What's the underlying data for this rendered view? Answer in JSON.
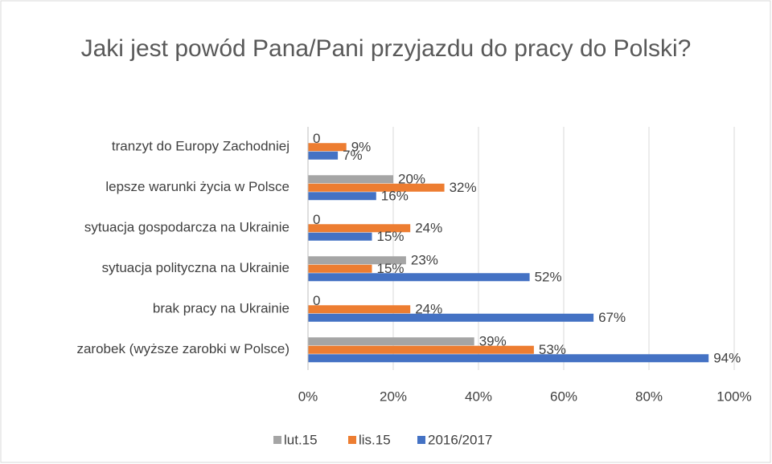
{
  "chart_data": {
    "type": "bar",
    "orientation": "horizontal",
    "title": "Jaki jest powód Pana/Pani przyjazdu do pracy  do Polski?",
    "categories": [
      "tranzyt do Europy Zachodniej",
      "lepsze warunki życia w Polsce",
      "sytuacja gospodarcza na Ukrainie",
      "sytuacja polityczna na Ukrainie",
      "brak pracy na Ukrainie",
      "zarobek (wyższe zarobki w Polsce)"
    ],
    "series": [
      {
        "name": "lut.15",
        "color": "#a5a5a5",
        "values": [
          0,
          20,
          0,
          23,
          0,
          39
        ],
        "value_labels": [
          "0",
          "20%",
          "0",
          "23%",
          "0",
          "39%"
        ]
      },
      {
        "name": "lis.15",
        "color": "#ed7d31",
        "values": [
          9,
          32,
          24,
          15,
          24,
          53
        ],
        "value_labels": [
          "9%",
          "32%",
          "24%",
          "15%",
          "24%",
          "53%"
        ]
      },
      {
        "name": "2016/2017",
        "color": "#4472c4",
        "values": [
          7,
          16,
          15,
          52,
          67,
          94
        ],
        "value_labels": [
          "7%",
          "16%",
          "15%",
          "52%",
          "67%",
          "94%"
        ]
      }
    ],
    "xlim": [
      0,
      100
    ],
    "xticks": [
      {
        "value": 0,
        "label": "0%"
      },
      {
        "value": 20,
        "label": "20%"
      },
      {
        "value": 40,
        "label": "40%"
      },
      {
        "value": 60,
        "label": "60%"
      },
      {
        "value": 80,
        "label": "80%"
      },
      {
        "value": 100,
        "label": "100%"
      }
    ],
    "grid": true,
    "legend": "bottom"
  }
}
